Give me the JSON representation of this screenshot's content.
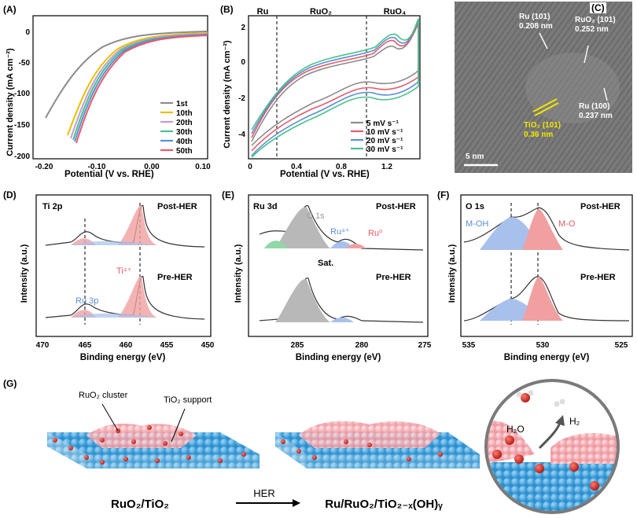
{
  "panels": {
    "A": {
      "label": "(A)",
      "xlabel": "Potential (V vs. RHE)",
      "ylabel": "Current density (mA cm⁻²)",
      "xticks": [
        "-0.20",
        "-0.10",
        "0.00",
        "0.10"
      ],
      "yticks": [
        "0",
        "-50",
        "-100",
        "-150",
        "-200"
      ],
      "legend": [
        {
          "label": "1st",
          "color": "#8c8c8c"
        },
        {
          "label": "10th",
          "color": "#e8c000"
        },
        {
          "label": "20th",
          "color": "#c49ad6"
        },
        {
          "label": "30th",
          "color": "#4cc08a"
        },
        {
          "label": "40th",
          "color": "#5b8fd6"
        },
        {
          "label": "50th",
          "color": "#e85a6a"
        }
      ]
    },
    "B": {
      "label": "(B)",
      "xlabel": "Potential (V vs. RHE)",
      "ylabel": "Current density (mA cm⁻²)",
      "xticks": [
        "0",
        "0.4",
        "0.8",
        "1.2"
      ],
      "yticks": [
        "2",
        "0",
        "-2",
        "-4"
      ],
      "regions": [
        "Ru",
        "RuO₂",
        "RuO₄"
      ],
      "legend": [
        {
          "label": "5 mV s⁻¹",
          "color": "#8c8c8c"
        },
        {
          "label": "10 mV s⁻¹",
          "color": "#e85a6a"
        },
        {
          "label": "20 mV s⁻¹",
          "color": "#5b8fd6"
        },
        {
          "label": "30 mV s⁻¹",
          "color": "#4cc08a"
        }
      ]
    },
    "C": {
      "label": "(C)",
      "annotations": [
        {
          "text": "Ru (101)",
          "sub": "0.208 nm"
        },
        {
          "text": "RuO₂ (101)",
          "sub": "0.252 nm"
        },
        {
          "text": "Ru (100)",
          "sub": "0.237 nm"
        },
        {
          "text": "TiO₂ (101)",
          "sub": "0.36 nm"
        }
      ],
      "scalebar": "5 nm"
    },
    "D": {
      "label": "(D)",
      "element": "Ti 2p",
      "xlabel": "Binding energy (eV)",
      "ylabel": "Intensity (a.u.)",
      "xticks": [
        "470",
        "465",
        "460",
        "455",
        "450"
      ],
      "top": "Post-HER",
      "bottom": "Pre-HER",
      "peaks": [
        "Ti⁴⁺",
        "Ru 3p"
      ]
    },
    "E": {
      "label": "(E)",
      "element": "Ru 3d",
      "xlabel": "Binding energy (eV)",
      "ylabel": "Intensity (a.u.)",
      "xticks": [
        "285",
        "280",
        "275"
      ],
      "top": "Post-HER",
      "bottom": "Pre-HER",
      "peaks": [
        "C 1s",
        "Ru⁴⁺",
        "Ru⁰",
        "Sat."
      ]
    },
    "F": {
      "label": "(F)",
      "element": "O 1s",
      "xlabel": "Binding energy (eV)",
      "ylabel": "Intensity (a.u.)",
      "xticks": [
        "535",
        "530",
        "525"
      ],
      "top": "Post-HER",
      "bottom": "Pre-HER",
      "peaks": [
        "M-OH",
        "M-O"
      ]
    },
    "G": {
      "label": "(G)",
      "cluster": "RuO₂ cluster",
      "support": "TiO₂ support",
      "left_formula": "RuO₂/TiO₂",
      "arrow": "HER",
      "right_formula": "Ru/RuO₂/TiO₂₋ₓ(OH)ᵧ",
      "water": "H₂O",
      "hydrogen": "H₂"
    }
  },
  "colors": {
    "gray": "#8c8c8c",
    "yellow": "#e8c000",
    "purple": "#c49ad6",
    "green": "#4cc08a",
    "blue": "#5b8fd6",
    "red": "#e85a6a",
    "sphere_blue": "#3ba6e0",
    "sphere_red": "#d8241e",
    "cluster_pink": "#f4b7bb"
  }
}
